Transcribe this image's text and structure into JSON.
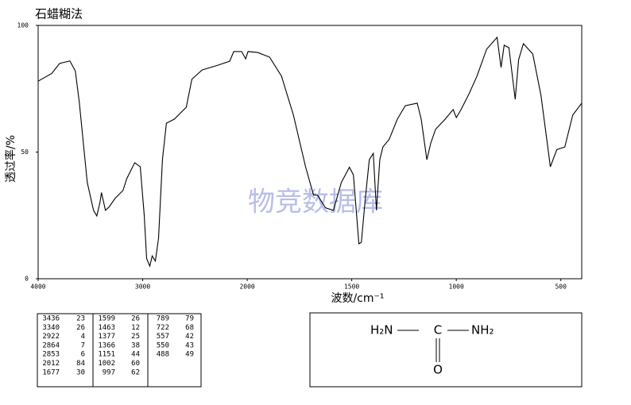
{
  "chart_data": {
    "type": "line",
    "title": "石蜡糊法",
    "xlabel": "波数/cm⁻¹",
    "ylabel": "透过率/%",
    "watermark": "物竞数据库",
    "x": [
      4000,
      3871,
      3795,
      3697,
      3644,
      3606,
      3530,
      3470,
      3439,
      3409,
      3394,
      3356,
      3318,
      3265,
      3189,
      3152,
      3076,
      3023,
      2985,
      2962,
      2932,
      2909,
      2879,
      2848,
      2811,
      2773,
      2697,
      2583,
      2530,
      2432,
      2280,
      2167,
      2129,
      2053,
      2015,
      1996,
      1950,
      1893,
      1836,
      1779,
      1721,
      1683,
      1664,
      1626,
      1588,
      1550,
      1511,
      1492,
      1466,
      1454,
      1435,
      1416,
      1397,
      1382,
      1366,
      1351,
      1321,
      1282,
      1244,
      1187,
      1168,
      1141,
      1122,
      1099,
      1053,
      1015,
      1000,
      977,
      939,
      901,
      855,
      805,
      786,
      771,
      748,
      718,
      702,
      679,
      634,
      595,
      565,
      550,
      519,
      481,
      443,
      400
    ],
    "values": [
      78,
      81,
      85,
      86,
      82,
      69.6,
      38,
      27,
      24.8,
      30,
      34,
      27,
      28.5,
      31.7,
      34.8,
      39.5,
      45.8,
      44.2,
      25,
      8,
      5,
      9,
      7,
      16,
      47,
      61.4,
      63,
      67.7,
      78.7,
      82.4,
      84.3,
      85.9,
      89.7,
      89.7,
      86.8,
      89.7,
      89.3,
      87.5,
      80,
      64.6,
      44.2,
      33,
      33,
      28,
      27,
      38,
      44,
      41,
      13.8,
      14.4,
      31.7,
      47,
      49.5,
      27,
      47,
      52,
      55,
      63,
      68.3,
      69.3,
      63,
      47,
      53.6,
      59,
      63,
      66.8,
      63.6,
      66.8,
      73,
      80,
      90.6,
      95.3,
      83.4,
      92.2,
      91.2,
      70.8,
      86.5,
      92.8,
      88.7,
      72.4,
      53.6,
      44.2,
      51,
      52,
      64.6,
      69.3
    ],
    "color": "#000000",
    "xlim": [
      4000,
      400
    ],
    "xbreak": 2000,
    "xticks": [
      4000,
      3000,
      2000,
      1500,
      1000,
      500
    ],
    "ylim": [
      0,
      100
    ],
    "yticks": [
      0,
      50,
      100
    ],
    "grid": false
  },
  "peak_table": {
    "columns": [
      [
        [
          3436,
          23
        ],
        [
          3340,
          26
        ],
        [
          2922,
          4
        ],
        [
          2864,
          7
        ],
        [
          2853,
          6
        ],
        [
          2012,
          84
        ],
        [
          1677,
          30
        ]
      ],
      [
        [
          1599,
          26
        ],
        [
          1463,
          12
        ],
        [
          1377,
          25
        ],
        [
          1366,
          38
        ],
        [
          1151,
          44
        ],
        [
          1002,
          60
        ],
        [
          997,
          62
        ]
      ],
      [
        [
          789,
          79
        ],
        [
          722,
          68
        ],
        [
          557,
          42
        ],
        [
          550,
          43
        ],
        [
          488,
          49
        ]
      ]
    ]
  },
  "structure": {
    "left": "H₂N",
    "center": "C",
    "right": "NH₂",
    "bottom": "O"
  }
}
